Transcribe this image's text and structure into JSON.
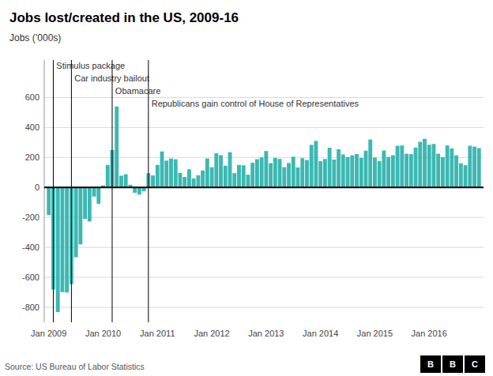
{
  "chart_data": {
    "type": "bar",
    "title": "Jobs lost/created in the US, 2009-16",
    "ylabel": "Jobs (’000s)",
    "source": "Source: US Bureau of Labor Statistics",
    "logo": [
      "B",
      "B",
      "C"
    ],
    "color": "#3cb8b2",
    "ylim": [
      -900,
      850
    ],
    "yticks": [
      -800,
      -600,
      -400,
      -200,
      0,
      200,
      400,
      600
    ],
    "grid": true,
    "categories": [
      "Jan 2009",
      null,
      null,
      null,
      null,
      null,
      null,
      null,
      null,
      null,
      null,
      null,
      "Jan 2010",
      null,
      null,
      null,
      null,
      null,
      null,
      null,
      null,
      null,
      null,
      null,
      "Jan 2011",
      null,
      null,
      null,
      null,
      null,
      null,
      null,
      null,
      null,
      null,
      null,
      "Jan 2012",
      null,
      null,
      null,
      null,
      null,
      null,
      null,
      null,
      null,
      null,
      null,
      "Jan 2013",
      null,
      null,
      null,
      null,
      null,
      null,
      null,
      null,
      null,
      null,
      null,
      "Jan 2014",
      null,
      null,
      null,
      null,
      null,
      null,
      null,
      null,
      null,
      null,
      null,
      "Jan 2015",
      null,
      null,
      null,
      null,
      null,
      null,
      null,
      null,
      null,
      null,
      null,
      "Jan 2016",
      null,
      null,
      null,
      null,
      null,
      null,
      null,
      null,
      null,
      null,
      null
    ],
    "values": [
      -185,
      -681,
      -832,
      -699,
      -701,
      -645,
      -466,
      -380,
      -211,
      -227,
      -61,
      -109,
      14,
      150,
      250,
      540,
      78,
      88,
      18,
      -36,
      -48,
      -26,
      95,
      80,
      150,
      240,
      179,
      193,
      188,
      97,
      70,
      121,
      60,
      81,
      113,
      193,
      135,
      228,
      215,
      145,
      235,
      95,
      150,
      147,
      85,
      165,
      188,
      200,
      243,
      162,
      197,
      190,
      135,
      163,
      205,
      133,
      195,
      183,
      284,
      310,
      175,
      190,
      265,
      186,
      255,
      220,
      202,
      214,
      223,
      197,
      245,
      320,
      200,
      175,
      246,
      203,
      215,
      278,
      280,
      225,
      222,
      266,
      304,
      324,
      285,
      290,
      225,
      202,
      280,
      260,
      214,
      161,
      148,
      278,
      272,
      262
    ],
    "annotations": [
      {
        "month_index": 1,
        "label": "Stimulus package"
      },
      {
        "month_index": 5,
        "label": "Car industry bailout"
      },
      {
        "month_index": 14,
        "label": "Obamacare"
      },
      {
        "month_index": 22,
        "label": "Republicans gain control of House of Representatives"
      }
    ]
  }
}
